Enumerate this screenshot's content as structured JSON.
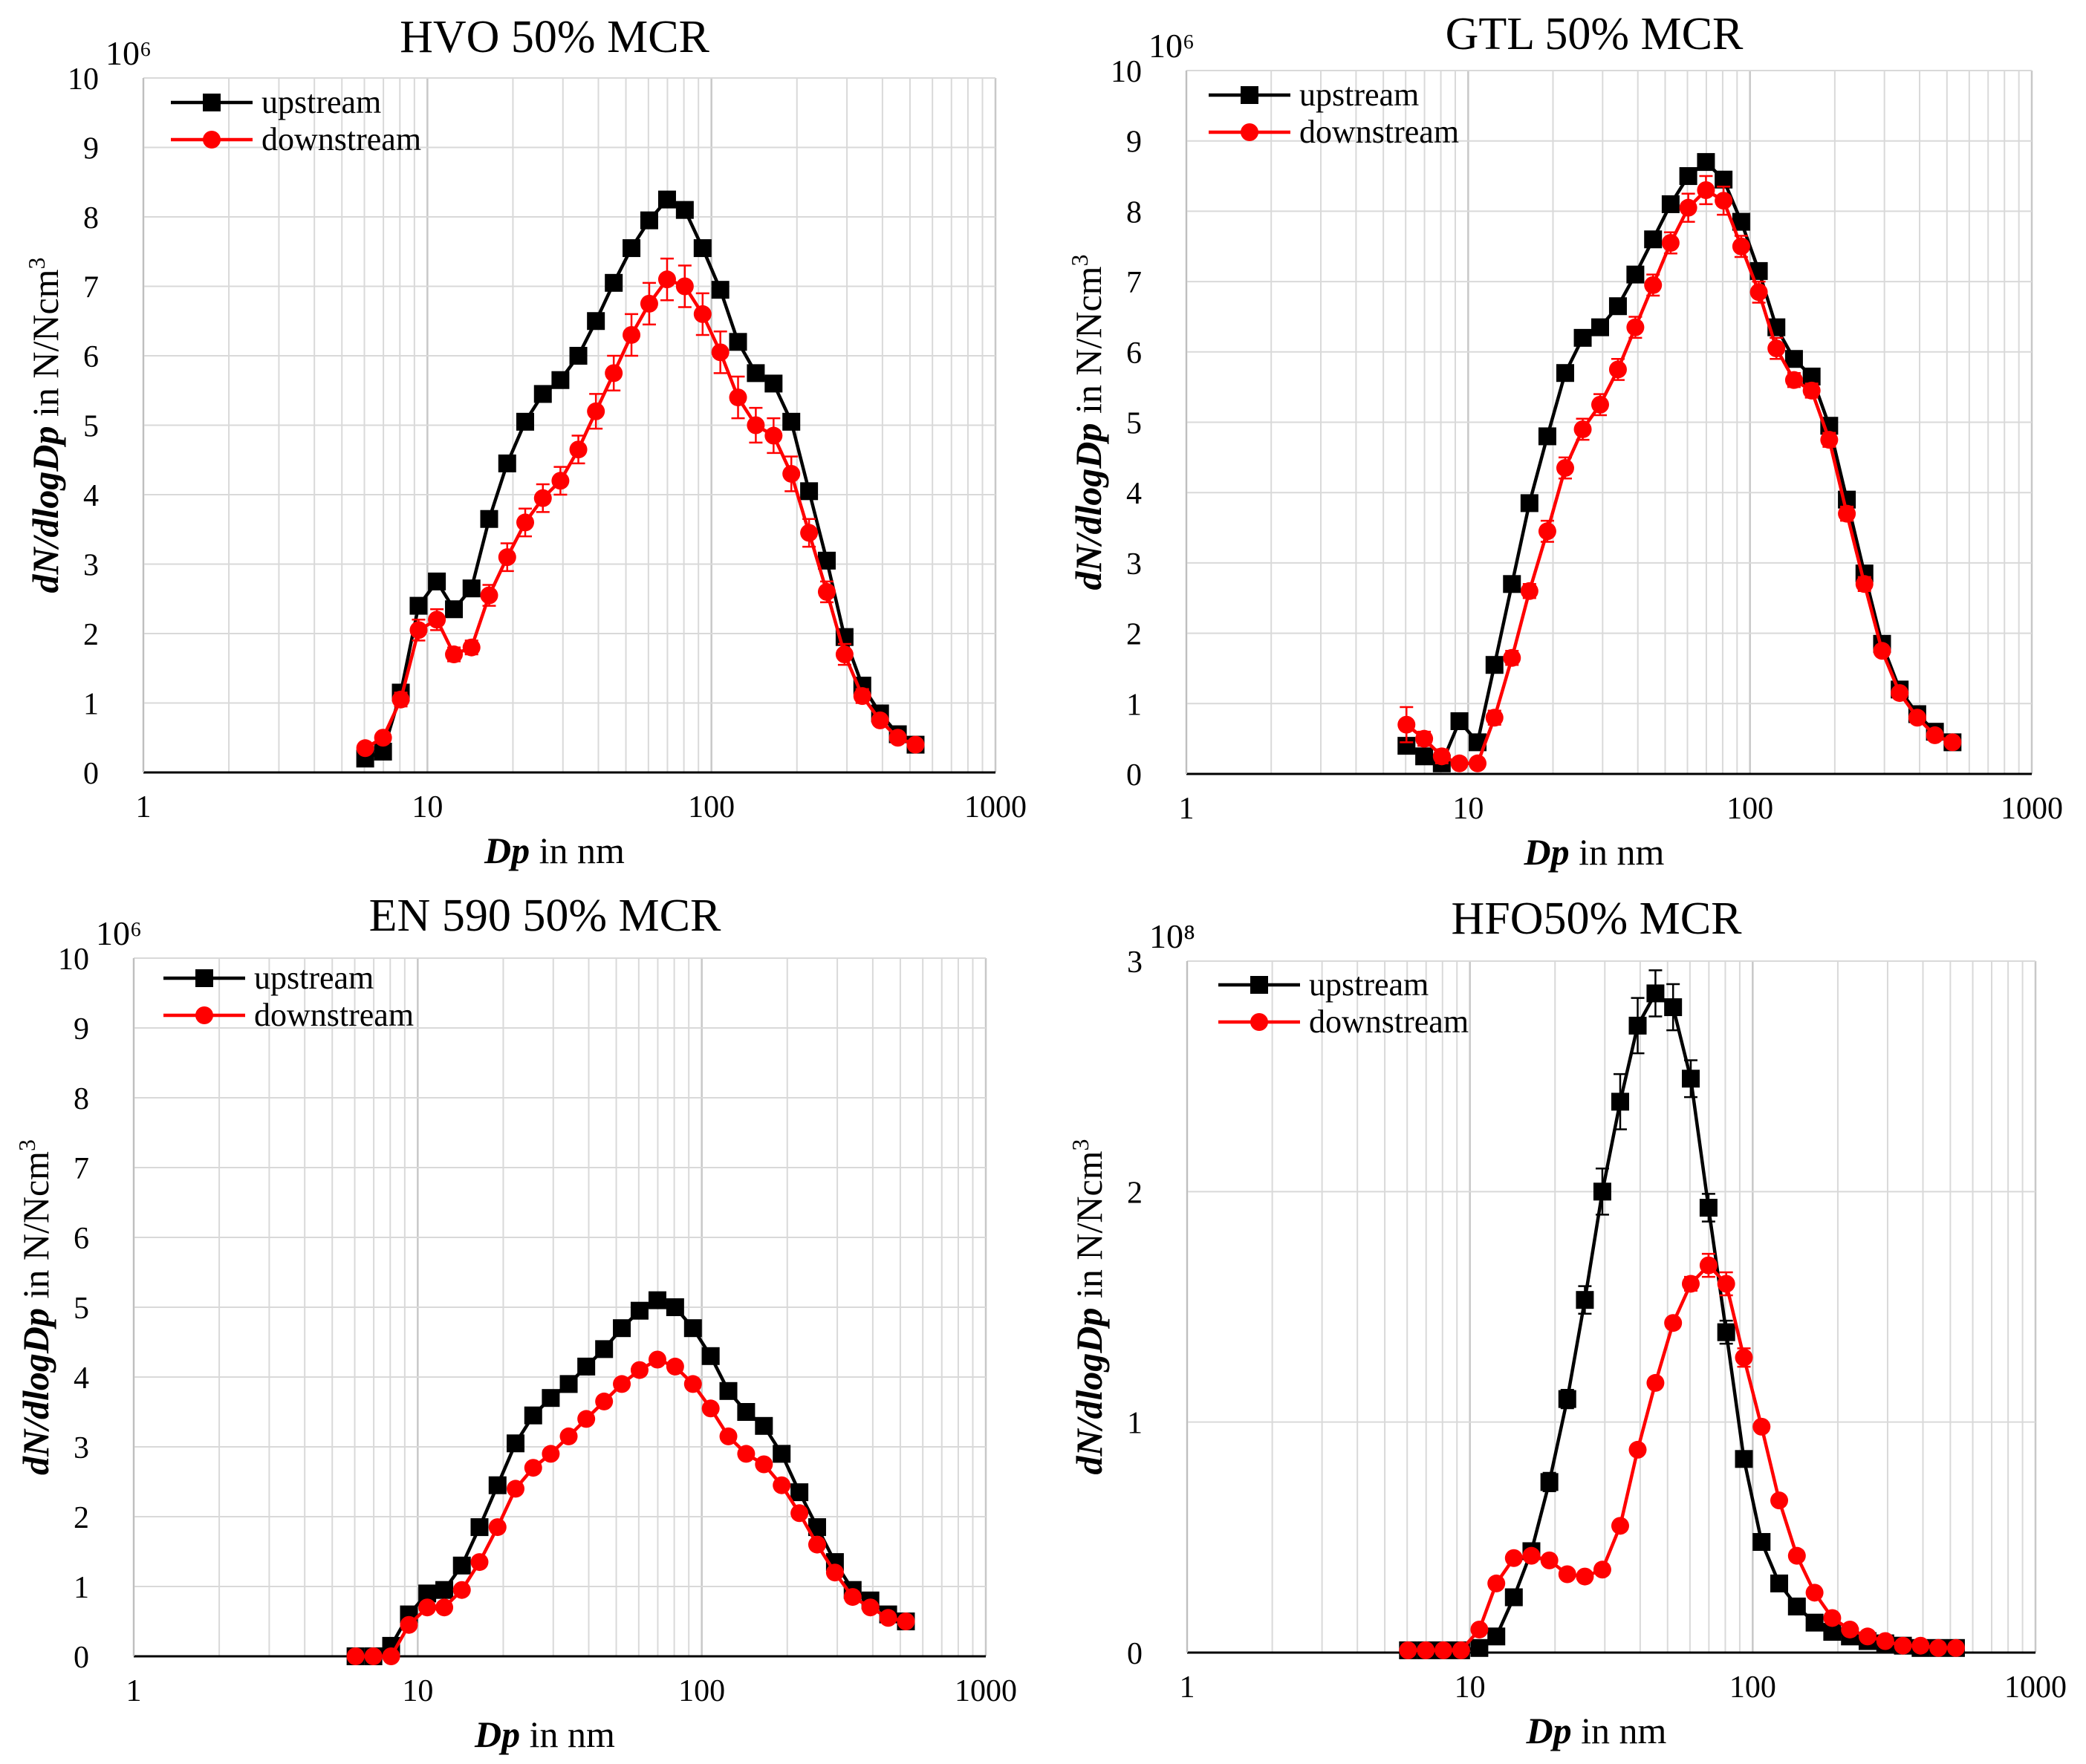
{
  "figure": {
    "colors": {
      "upstream": "#000000",
      "downstream": "#ff0000",
      "grid": "#d9d9d9",
      "axis": "#000000"
    }
  },
  "chart_data": [
    {
      "type": "line",
      "title": "HVO 50% MCR",
      "multiplier": "10⁶",
      "xlabel_var": "Dp",
      "xlabel_rest": " in nm",
      "ylabel_var": "dN/dlogDp",
      "ylabel_rest": " in N/Ncm",
      "ylabel_sup": "3",
      "xscale": "log",
      "xlim": [
        1,
        1000
      ],
      "ylim": [
        0,
        10
      ],
      "xticks": [
        1,
        10,
        100,
        1000
      ],
      "xtick_labels": [
        "1",
        "10",
        "100",
        "1000"
      ],
      "yticks": [
        0,
        1,
        2,
        3,
        4,
        5,
        6,
        7,
        8,
        9,
        10
      ],
      "ytick_labels": [
        "0",
        "1",
        "2",
        "3",
        "4",
        "5",
        "6",
        "7",
        "8",
        "9",
        "10"
      ],
      "legend_position": "top-left",
      "x": [
        6.04,
        6.98,
        8.06,
        9.31,
        10.8,
        12.4,
        14.3,
        16.5,
        19.1,
        22.1,
        25.5,
        29.4,
        34.0,
        39.2,
        45.3,
        52.3,
        60.4,
        69.8,
        80.6,
        93.1,
        107.5,
        124.1,
        143.3,
        165.5,
        191.1,
        220.7,
        254.8,
        294.3,
        339.8,
        392.4,
        453.2,
        523.3
      ],
      "series": [
        {
          "name": "upstream",
          "color": "#000000",
          "marker": "square",
          "values": [
            0.2,
            0.3,
            1.15,
            2.4,
            2.75,
            2.35,
            2.65,
            3.65,
            4.45,
            5.05,
            5.45,
            5.65,
            6.0,
            6.5,
            7.05,
            7.55,
            7.95,
            8.25,
            8.1,
            7.55,
            6.95,
            6.2,
            5.75,
            5.6,
            5.05,
            4.05,
            3.05,
            1.95,
            1.25,
            0.85,
            0.55,
            0.4
          ],
          "errors": [
            0,
            0,
            0,
            0,
            0,
            0,
            0,
            0,
            0,
            0,
            0,
            0,
            0,
            0,
            0,
            0,
            0,
            0,
            0,
            0,
            0,
            0,
            0,
            0,
            0,
            0,
            0,
            0,
            0,
            0,
            0,
            0
          ]
        },
        {
          "name": "downstream",
          "color": "#ff0000",
          "marker": "circle",
          "values": [
            0.35,
            0.5,
            1.05,
            2.05,
            2.2,
            1.7,
            1.8,
            2.55,
            3.1,
            3.6,
            3.95,
            4.2,
            4.65,
            5.2,
            5.75,
            6.3,
            6.75,
            7.1,
            7.0,
            6.6,
            6.05,
            5.4,
            5.0,
            4.85,
            4.3,
            3.45,
            2.6,
            1.7,
            1.1,
            0.75,
            0.5,
            0.4
          ],
          "errors": [
            0.05,
            0.05,
            0.1,
            0.15,
            0.15,
            0.1,
            0.1,
            0.15,
            0.2,
            0.2,
            0.2,
            0.2,
            0.2,
            0.25,
            0.25,
            0.3,
            0.3,
            0.3,
            0.3,
            0.3,
            0.3,
            0.3,
            0.25,
            0.25,
            0.25,
            0.2,
            0.15,
            0.15,
            0.1,
            0.05,
            0.05,
            0.05
          ]
        }
      ]
    },
    {
      "type": "line",
      "title": "GTL 50% MCR",
      "multiplier": "10⁶",
      "xlabel_var": "Dp",
      "xlabel_rest": " in nm",
      "ylabel_var": "dN/dlogDp",
      "ylabel_rest": " in N/Ncm",
      "ylabel_sup": "3",
      "xscale": "log",
      "xlim": [
        1,
        1000
      ],
      "ylim": [
        0,
        10
      ],
      "xticks": [
        1,
        10,
        100,
        1000
      ],
      "xtick_labels": [
        "1",
        "10",
        "100",
        "1000"
      ],
      "yticks": [
        0,
        1,
        2,
        3,
        4,
        5,
        6,
        7,
        8,
        9,
        10
      ],
      "ytick_labels": [
        "0",
        "1",
        "2",
        "3",
        "4",
        "5",
        "6",
        "7",
        "8",
        "9",
        "10"
      ],
      "legend_position": "top-left",
      "x": [
        6.04,
        6.98,
        8.06,
        9.31,
        10.8,
        12.4,
        14.3,
        16.5,
        19.1,
        22.1,
        25.5,
        29.4,
        34.0,
        39.2,
        45.3,
        52.3,
        60.4,
        69.8,
        80.6,
        93.1,
        107.5,
        124.1,
        143.3,
        165.5,
        191.1,
        220.7,
        254.8,
        294.3,
        339.8,
        392.4,
        453.2,
        523.3
      ],
      "series": [
        {
          "name": "upstream",
          "color": "#000000",
          "marker": "square",
          "values": [
            0.4,
            0.25,
            0.15,
            0.75,
            0.45,
            1.55,
            2.7,
            3.85,
            4.8,
            5.7,
            6.2,
            6.35,
            6.65,
            7.1,
            7.6,
            8.1,
            8.5,
            8.7,
            8.45,
            7.85,
            7.15,
            6.35,
            5.9,
            5.65,
            4.95,
            3.9,
            2.85,
            1.85,
            1.2,
            0.85,
            0.6,
            0.45
          ],
          "errors": [
            0,
            0,
            0,
            0,
            0,
            0,
            0,
            0,
            0,
            0,
            0,
            0,
            0,
            0,
            0,
            0,
            0,
            0,
            0,
            0,
            0,
            0,
            0,
            0,
            0,
            0,
            0,
            0,
            0,
            0,
            0,
            0
          ]
        },
        {
          "name": "downstream",
          "color": "#ff0000",
          "marker": "circle",
          "values": [
            0.7,
            0.5,
            0.25,
            0.15,
            0.15,
            0.8,
            1.65,
            2.6,
            3.45,
            4.35,
            4.9,
            5.25,
            5.75,
            6.35,
            6.95,
            7.55,
            8.05,
            8.3,
            8.15,
            7.5,
            6.85,
            6.05,
            5.6,
            5.45,
            4.75,
            3.7,
            2.7,
            1.75,
            1.15,
            0.8,
            0.55,
            0.45
          ],
          "errors": [
            0.25,
            0.1,
            0.1,
            0.05,
            0.05,
            0.1,
            0.1,
            0.1,
            0.15,
            0.15,
            0.15,
            0.15,
            0.15,
            0.15,
            0.15,
            0.15,
            0.2,
            0.2,
            0.2,
            0.15,
            0.15,
            0.15,
            0.1,
            0.1,
            0.1,
            0.1,
            0.1,
            0.05,
            0.05,
            0.05,
            0.05,
            0.05
          ]
        }
      ]
    },
    {
      "type": "line",
      "title": "EN 590 50% MCR",
      "multiplier": "10⁶",
      "xlabel_var": "Dp",
      "xlabel_rest": " in nm",
      "ylabel_var": "dN/dlogDp",
      "ylabel_rest": " in N/Ncm",
      "ylabel_sup": "3",
      "xscale": "log",
      "xlim": [
        1,
        1000
      ],
      "ylim": [
        0,
        10
      ],
      "xticks": [
        1,
        10,
        100,
        1000
      ],
      "xtick_labels": [
        "1",
        "10",
        "100",
        "1000"
      ],
      "yticks": [
        0,
        1,
        2,
        3,
        4,
        5,
        6,
        7,
        8,
        9,
        10
      ],
      "ytick_labels": [
        "0",
        "1",
        "2",
        "3",
        "4",
        "5",
        "6",
        "7",
        "8",
        "9",
        "10"
      ],
      "legend_position": "top-left",
      "x": [
        6.04,
        6.98,
        8.06,
        9.31,
        10.8,
        12.4,
        14.3,
        16.5,
        19.1,
        22.1,
        25.5,
        29.4,
        34.0,
        39.2,
        45.3,
        52.3,
        60.4,
        69.8,
        80.6,
        93.1,
        107.5,
        124.1,
        143.3,
        165.5,
        191.1,
        220.7,
        254.8,
        294.3,
        339.8,
        392.4,
        453.2,
        523.3
      ],
      "series": [
        {
          "name": "upstream",
          "color": "#000000",
          "marker": "square",
          "values": [
            0.0,
            0.0,
            0.15,
            0.6,
            0.9,
            0.95,
            1.3,
            1.85,
            2.45,
            3.05,
            3.45,
            3.7,
            3.9,
            4.15,
            4.4,
            4.7,
            4.95,
            5.1,
            5.0,
            4.7,
            4.3,
            3.8,
            3.5,
            3.3,
            2.9,
            2.35,
            1.85,
            1.35,
            0.95,
            0.8,
            0.6,
            0.5
          ],
          "errors": [
            0,
            0,
            0,
            0,
            0,
            0,
            0,
            0,
            0,
            0,
            0,
            0,
            0,
            0,
            0,
            0,
            0,
            0,
            0,
            0,
            0,
            0,
            0,
            0,
            0,
            0,
            0,
            0,
            0,
            0,
            0,
            0
          ]
        },
        {
          "name": "downstream",
          "color": "#ff0000",
          "marker": "circle",
          "values": [
            0.0,
            0.0,
            0.0,
            0.45,
            0.7,
            0.7,
            0.95,
            1.35,
            1.85,
            2.4,
            2.7,
            2.9,
            3.15,
            3.4,
            3.65,
            3.9,
            4.1,
            4.25,
            4.15,
            3.9,
            3.55,
            3.15,
            2.9,
            2.75,
            2.45,
            2.05,
            1.6,
            1.2,
            0.85,
            0.7,
            0.55,
            0.5
          ],
          "errors": [
            0,
            0,
            0,
            0,
            0,
            0,
            0,
            0,
            0,
            0,
            0,
            0,
            0,
            0,
            0,
            0,
            0,
            0,
            0,
            0,
            0,
            0,
            0,
            0,
            0,
            0,
            0,
            0,
            0,
            0,
            0,
            0
          ]
        }
      ]
    },
    {
      "type": "line",
      "title": "HFO50% MCR",
      "multiplier": "10⁸",
      "xlabel_var": "Dp",
      "xlabel_rest": " in nm",
      "ylabel_var": "dN/dlogDp",
      "ylabel_rest": " in N/Ncm",
      "ylabel_sup": "3",
      "xscale": "log",
      "xlim": [
        1,
        1000
      ],
      "ylim": [
        0,
        3
      ],
      "xticks": [
        1,
        10,
        100,
        1000
      ],
      "xtick_labels": [
        "1",
        "10",
        "100",
        "1000"
      ],
      "yticks": [
        0,
        1,
        2,
        3
      ],
      "ytick_labels": [
        "0",
        "1",
        "2",
        "3"
      ],
      "legend_position": "top-left",
      "x": [
        6.04,
        6.98,
        8.06,
        9.31,
        10.8,
        12.4,
        14.3,
        16.5,
        19.1,
        22.1,
        25.5,
        29.4,
        34.0,
        39.2,
        45.3,
        52.3,
        60.4,
        69.8,
        80.6,
        93.1,
        107.5,
        124.1,
        143.3,
        165.5,
        191.1,
        220.7,
        254.8,
        294.3,
        339.8,
        392.4,
        453.2,
        523.3
      ],
      "series": [
        {
          "name": "upstream",
          "color": "#000000",
          "marker": "square",
          "values": [
            0.01,
            0.01,
            0.01,
            0.01,
            0.02,
            0.07,
            0.24,
            0.44,
            0.74,
            1.1,
            1.53,
            2.0,
            2.39,
            2.72,
            2.86,
            2.8,
            2.49,
            1.93,
            1.39,
            0.84,
            0.48,
            0.3,
            0.2,
            0.13,
            0.09,
            0.07,
            0.05,
            0.04,
            0.03,
            0.02,
            0.02,
            0.02
          ],
          "errors": [
            0,
            0,
            0,
            0,
            0,
            0.01,
            0.02,
            0.03,
            0.04,
            0.04,
            0.06,
            0.1,
            0.12,
            0.12,
            0.1,
            0.1,
            0.08,
            0.06,
            0.05,
            0.03,
            0.02,
            0.01,
            0.01,
            0.01,
            0,
            0,
            0,
            0,
            0,
            0,
            0,
            0
          ]
        },
        {
          "name": "downstream",
          "color": "#ff0000",
          "marker": "circle",
          "values": [
            0.01,
            0.01,
            0.01,
            0.01,
            0.1,
            0.3,
            0.41,
            0.42,
            0.4,
            0.34,
            0.33,
            0.36,
            0.55,
            0.88,
            1.17,
            1.43,
            1.6,
            1.68,
            1.6,
            1.28,
            0.98,
            0.66,
            0.42,
            0.26,
            0.15,
            0.1,
            0.07,
            0.05,
            0.03,
            0.03,
            0.02,
            0.02
          ],
          "errors": [
            0,
            0,
            0,
            0,
            0,
            0,
            0,
            0,
            0,
            0,
            0,
            0,
            0,
            0,
            0,
            0.02,
            0.03,
            0.05,
            0.05,
            0.04,
            0.02,
            0.01,
            0,
            0,
            0,
            0,
            0,
            0,
            0,
            0,
            0,
            0
          ]
        }
      ]
    }
  ]
}
